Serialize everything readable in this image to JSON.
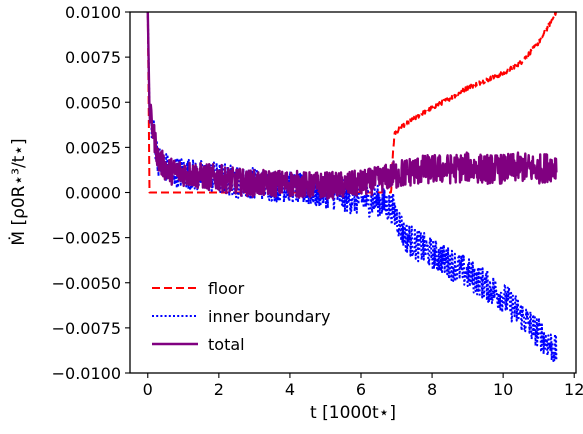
{
  "chart_data": {
    "type": "line",
    "xlabel": "t [1000t⋆]",
    "ylabel": "Ṁ [ρ0R⋆³/t⋆]",
    "xlim": [
      -0.5,
      12.05
    ],
    "ylim": [
      -0.01,
      0.01
    ],
    "x_ticks": [
      0,
      2,
      4,
      6,
      8,
      10,
      12
    ],
    "x_tick_labels": [
      "0",
      "2",
      "4",
      "6",
      "8",
      "10",
      "12"
    ],
    "y_ticks": [
      -0.01,
      -0.0075,
      -0.005,
      -0.0025,
      0.0,
      0.0025,
      0.005,
      0.0075,
      0.01
    ],
    "y_tick_labels": [
      "−0.0100",
      "−0.0075",
      "−0.0050",
      "−0.0025",
      "0.0000",
      "0.0025",
      "0.0050",
      "0.0075",
      "0.0100"
    ],
    "grid": false,
    "legend_position": "lower-left",
    "series": [
      {
        "name": "floor",
        "color": "#ff0000",
        "style": "dashed",
        "x": [
          0,
          0.05,
          6.85,
          6.9,
          6.95,
          7.2,
          7.5,
          8.0,
          8.5,
          9.0,
          9.5,
          10.0,
          10.5,
          11.0,
          11.3,
          11.5
        ],
        "y": [
          0.01,
          0.0,
          0.0,
          0.0023,
          0.0033,
          0.0037,
          0.0041,
          0.0047,
          0.0052,
          0.0058,
          0.0062,
          0.0066,
          0.0072,
          0.0083,
          0.0093,
          0.01
        ]
      },
      {
        "name": "inner boundary",
        "color": "#0000ff",
        "style": "dotted",
        "x": [
          0,
          0.05,
          0.3,
          0.6,
          1.0,
          1.5,
          2.0,
          2.5,
          3.0,
          3.5,
          4.0,
          4.5,
          5.0,
          5.5,
          6.0,
          6.5,
          6.9,
          7.2,
          7.5,
          8.0,
          8.5,
          9.0,
          9.5,
          10.0,
          10.5,
          11.0,
          11.5
        ],
        "y": [
          0.01,
          0.0045,
          0.0018,
          0.0012,
          0.0011,
          0.0009,
          0.0008,
          0.0006,
          0.0005,
          0.0004,
          0.0003,
          0.0001,
          0.0,
          -0.0002,
          -0.0004,
          -0.0005,
          -0.0009,
          -0.0023,
          -0.0028,
          -0.0034,
          -0.0039,
          -0.0045,
          -0.0051,
          -0.0058,
          -0.0068,
          -0.0078,
          -0.0088
        ]
      },
      {
        "name": "total",
        "color": "#800080",
        "style": "solid",
        "x": [
          0,
          0.05,
          0.3,
          0.6,
          1.0,
          1.5,
          2.0,
          2.5,
          3.0,
          3.5,
          4.0,
          4.5,
          5.0,
          5.5,
          6.0,
          6.5,
          7.0,
          7.5,
          8.0,
          8.5,
          9.0,
          9.5,
          10.0,
          10.5,
          11.0,
          11.5
        ],
        "y": [
          0.01,
          0.0045,
          0.0018,
          0.0012,
          0.0011,
          0.0009,
          0.0008,
          0.0006,
          0.0005,
          0.0005,
          0.0005,
          0.0004,
          0.0004,
          0.0004,
          0.0005,
          0.0007,
          0.001,
          0.0012,
          0.0013,
          0.0013,
          0.0014,
          0.0013,
          0.0013,
          0.0014,
          0.0013,
          0.0015
        ]
      }
    ]
  }
}
